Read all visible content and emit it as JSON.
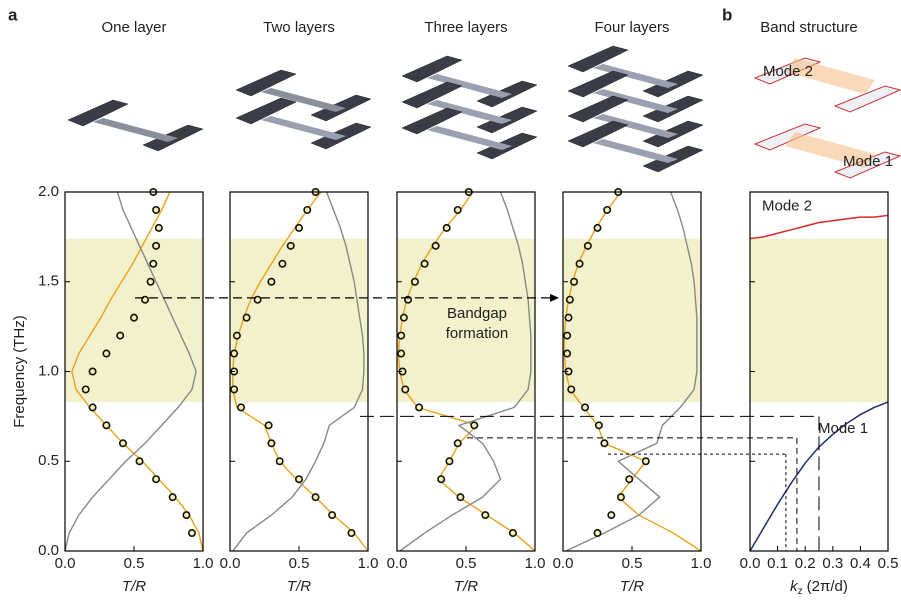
{
  "panel_labels": [
    "a",
    "b"
  ],
  "image_labels": [
    "Mode 2",
    "Mode 1"
  ],
  "chart_data": [
    {
      "type": "line",
      "title": "One layer",
      "swap_axes": true,
      "x": [
        0,
        0.1,
        0.2,
        0.3,
        0.4,
        0.5,
        0.6,
        0.7,
        0.8,
        0.9,
        1.0,
        1.1,
        1.2,
        1.3,
        1.4,
        1.5,
        1.6,
        1.7,
        1.8,
        1.9,
        2.0
      ],
      "xlim": [
        0,
        2
      ],
      "ylim": [
        0,
        1
      ],
      "xticks": [
        {
          "value": 0,
          "label": "0.0"
        },
        {
          "value": 0.5,
          "label": "0.5"
        },
        {
          "value": 1,
          "label": "1.0"
        },
        {
          "value": 1.5,
          "label": "1.5"
        },
        {
          "value": 2,
          "label": "2.0"
        }
      ],
      "yticks": [
        {
          "value": 0,
          "label": "0.0"
        },
        {
          "value": 0.5,
          "label": "0.5"
        },
        {
          "value": 1,
          "label": "1.0"
        }
      ],
      "xlabel": "Frequency (THz)",
      "ylabel": "T/R",
      "bandgap": [
        0.83,
        1.74
      ],
      "series": [
        {
          "color": "#e8a317",
          "values": [
            1.0,
            0.97,
            0.9,
            0.8,
            0.68,
            0.56,
            0.42,
            0.3,
            0.18,
            0.08,
            0.05,
            0.1,
            0.18,
            0.26,
            0.33,
            0.41,
            0.49,
            0.56,
            0.63,
            0.7,
            0.76
          ]
        },
        {
          "color": "#888888",
          "values": [
            0,
            0.03,
            0.1,
            0.2,
            0.32,
            0.44,
            0.58,
            0.7,
            0.82,
            0.92,
            0.95,
            0.9,
            0.84,
            0.78,
            0.72,
            0.66,
            0.6,
            0.54,
            0.48,
            0.42,
            0.38
          ]
        },
        {
          "color": "#f4f0b0",
          "marker": "circle",
          "values": [
            null,
            0.92,
            0.88,
            0.78,
            0.66,
            0.54,
            0.42,
            0.3,
            0.2,
            0.15,
            0.2,
            0.3,
            0.4,
            0.5,
            0.58,
            0.62,
            0.64,
            0.66,
            0.68,
            0.66,
            0.64
          ]
        }
      ]
    },
    {
      "type": "line",
      "title": "Two layers",
      "swap_axes": true,
      "x": [
        0,
        0.1,
        0.2,
        0.3,
        0.4,
        0.5,
        0.6,
        0.7,
        0.8,
        0.9,
        1.0,
        1.1,
        1.2,
        1.3,
        1.4,
        1.5,
        1.6,
        1.7,
        1.8,
        1.9,
        2.0
      ],
      "xlim": [
        0,
        2
      ],
      "ylim": [
        0,
        1
      ],
      "yticks": [
        {
          "value": 0,
          "label": "0.0"
        },
        {
          "value": 0.5,
          "label": "0.5"
        },
        {
          "value": 1,
          "label": "1.0"
        }
      ],
      "ylabel": "T/R",
      "bandgap": [
        0.83,
        1.74
      ],
      "series": [
        {
          "color": "#e8a317",
          "values": [
            1.0,
            0.9,
            0.75,
            0.62,
            0.48,
            0.36,
            0.3,
            0.25,
            0.05,
            0.02,
            0.02,
            0.03,
            0.06,
            0.1,
            0.15,
            0.22,
            0.3,
            0.38,
            0.47,
            0.56,
            0.66
          ]
        },
        {
          "color": "#888888",
          "values": [
            0.02,
            0.12,
            0.3,
            0.45,
            0.55,
            0.62,
            0.68,
            0.72,
            0.9,
            0.96,
            0.97,
            0.97,
            0.96,
            0.94,
            0.92,
            0.9,
            0.87,
            0.84,
            0.8,
            0.75,
            0.7
          ]
        },
        {
          "color": "#f4f0b0",
          "marker": "circle",
          "values": [
            null,
            0.88,
            0.74,
            0.62,
            0.5,
            0.36,
            0.3,
            0.28,
            0.08,
            0.03,
            0.03,
            0.03,
            0.05,
            0.12,
            0.2,
            0.3,
            0.38,
            0.44,
            0.5,
            0.56,
            0.62
          ]
        }
      ]
    },
    {
      "type": "line",
      "title": "Three layers",
      "swap_axes": true,
      "x": [
        0,
        0.1,
        0.2,
        0.3,
        0.4,
        0.5,
        0.6,
        0.7,
        0.8,
        0.9,
        1.0,
        1.1,
        1.2,
        1.3,
        1.4,
        1.5,
        1.6,
        1.7,
        1.8,
        1.9,
        2.0
      ],
      "xlim": [
        0,
        2
      ],
      "ylim": [
        0,
        1
      ],
      "yticks": [
        {
          "value": 0,
          "label": "0.0"
        },
        {
          "value": 0.5,
          "label": "0.5"
        },
        {
          "value": 1,
          "label": "1.0"
        }
      ],
      "ylabel": "T/R",
      "bandgap": [
        0.83,
        1.74
      ],
      "annotation": "Bandgap formation",
      "series": [
        {
          "color": "#e8a317",
          "values": [
            1.0,
            0.85,
            0.65,
            0.45,
            0.3,
            0.38,
            0.45,
            0.58,
            0.15,
            0.05,
            0.02,
            0.01,
            0.02,
            0.04,
            0.07,
            0.12,
            0.18,
            0.26,
            0.35,
            0.46,
            0.55
          ]
        },
        {
          "color": "#888888",
          "values": [
            0.02,
            0.2,
            0.4,
            0.62,
            0.75,
            0.7,
            0.62,
            0.45,
            0.85,
            0.95,
            0.97,
            0.97,
            0.97,
            0.96,
            0.95,
            0.93,
            0.91,
            0.88,
            0.84,
            0.8,
            0.75
          ]
        },
        {
          "color": "#f4f0b0",
          "marker": "circle",
          "values": [
            null,
            0.84,
            0.64,
            0.46,
            0.32,
            0.38,
            0.44,
            0.56,
            0.16,
            0.06,
            0.04,
            0.03,
            0.03,
            0.05,
            0.08,
            0.13,
            0.2,
            0.28,
            0.36,
            0.44,
            0.52
          ]
        }
      ]
    },
    {
      "type": "line",
      "title": "Four layers",
      "swap_axes": true,
      "x": [
        0,
        0.1,
        0.2,
        0.3,
        0.4,
        0.5,
        0.6,
        0.7,
        0.8,
        0.9,
        1.0,
        1.1,
        1.2,
        1.3,
        1.4,
        1.5,
        1.6,
        1.7,
        1.8,
        1.9,
        2.0
      ],
      "xlim": [
        0,
        2
      ],
      "ylim": [
        0,
        1
      ],
      "yticks": [
        {
          "value": 0,
          "label": "0.0"
        },
        {
          "value": 0.5,
          "label": "0.5"
        },
        {
          "value": 1,
          "label": "1.0"
        }
      ],
      "ylabel": "T/R",
      "bandgap": [
        0.83,
        1.74
      ],
      "series": [
        {
          "color": "#e8a317",
          "values": [
            1.0,
            0.8,
            0.55,
            0.4,
            0.5,
            0.6,
            0.3,
            0.25,
            0.15,
            0.05,
            0.02,
            0.01,
            0.01,
            0.02,
            0.04,
            0.07,
            0.11,
            0.17,
            0.24,
            0.32,
            0.42
          ]
        },
        {
          "color": "#888888",
          "values": [
            0.02,
            0.3,
            0.55,
            0.7,
            0.55,
            0.4,
            0.68,
            0.72,
            0.85,
            0.95,
            0.97,
            0.97,
            0.97,
            0.97,
            0.96,
            0.95,
            0.93,
            0.9,
            0.87,
            0.83,
            0.78
          ]
        },
        {
          "color": "#f4f0b0",
          "marker": "circle",
          "values": [
            null,
            0.25,
            0.35,
            0.42,
            0.48,
            0.6,
            0.3,
            0.26,
            0.16,
            0.06,
            0.04,
            0.03,
            0.03,
            0.04,
            0.05,
            0.08,
            0.12,
            0.18,
            0.25,
            0.32,
            0.4
          ]
        }
      ]
    },
    {
      "type": "band",
      "title": "Band structure",
      "x": [
        0,
        0.05,
        0.1,
        0.15,
        0.2,
        0.25,
        0.3,
        0.35,
        0.4,
        0.45,
        0.5
      ],
      "xlim": [
        0,
        0.5
      ],
      "ylim": [
        0,
        2
      ],
      "xticks": [
        {
          "value": 0,
          "label": "0.0"
        },
        {
          "value": 0.1,
          "label": "0.1"
        },
        {
          "value": 0.2,
          "label": "0.2"
        },
        {
          "value": 0.3,
          "label": "0.3"
        },
        {
          "value": 0.4,
          "label": "0.4"
        },
        {
          "value": 0.5,
          "label": "0.5"
        }
      ],
      "xlabel": {
        "symbol": "k",
        "subscript": "z",
        "unit": "(2π/d)"
      },
      "bandgap": [
        0.83,
        1.74
      ],
      "guides": {
        "arrow_frequency": 1.41,
        "levels": [
          {
            "frequency": 0.75,
            "k": 0.25
          },
          {
            "frequency": 0.63,
            "k": 0.17
          },
          {
            "frequency": 0.54,
            "k": 0.13
          }
        ]
      },
      "series": [
        {
          "label": "Mode 1",
          "color": "#1f2f6e",
          "values": [
            0,
            0.13,
            0.26,
            0.38,
            0.49,
            0.58,
            0.65,
            0.71,
            0.76,
            0.8,
            0.83
          ]
        },
        {
          "label": "Mode 2",
          "color": "#d42a2a",
          "values": [
            1.74,
            1.75,
            1.77,
            1.79,
            1.81,
            1.83,
            1.84,
            1.85,
            1.86,
            1.86,
            1.87
          ]
        }
      ]
    }
  ]
}
